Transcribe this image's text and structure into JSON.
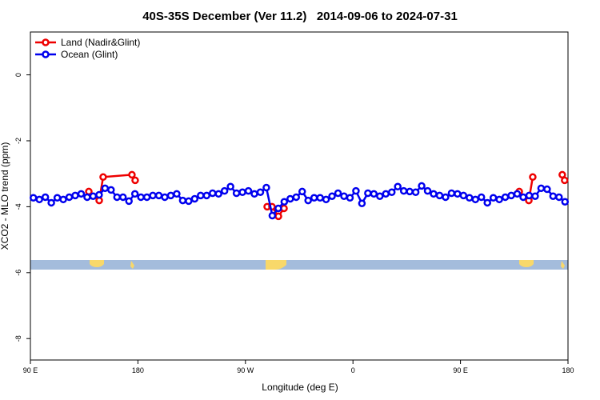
{
  "chart_data": {
    "type": "line",
    "title": "40S-35S December (Ver 11.2)   2014-09-06 to 2024-07-31",
    "xlabel": "Longitude (deg E)",
    "ylabel": "XCO2 - MLO trend (ppm)",
    "xlim": [
      90,
      540
    ],
    "ylim": [
      -8.65,
      1.3
    ],
    "xticks": [
      {
        "value": 90,
        "label": "90 E"
      },
      180,
      {
        "value": 270,
        "label": "90 W"
      },
      {
        "value": 360,
        "label": "0"
      },
      {
        "value": 450,
        "label": "90 E"
      },
      {
        "value": 540,
        "label": "180"
      }
    ],
    "yticks": [
      0,
      -2,
      -4,
      -6,
      -8
    ],
    "legend": "top-left",
    "series": [
      {
        "name": "Land (Nadir&Glint)",
        "color": "#ee0000",
        "x": [
          138.9,
          147.6,
          150.9,
          175.0,
          177.7,
          null,
          288.2,
          292.2,
          297.6,
          302.3,
          null,
          499.2,
          507.2,
          510.5,
          null,
          535.2,
          537.2
        ],
        "values": [
          -3.54,
          -3.81,
          -3.1,
          -3.03,
          -3.2,
          null,
          -4.0,
          -4.0,
          -4.29,
          -4.05,
          null,
          -3.54,
          -3.81,
          -3.1,
          null,
          -3.03,
          -3.2
        ]
      },
      {
        "name": "Ocean (Glint)",
        "color": "#0000ee",
        "x": [
          92.5,
          97.5,
          102.5,
          107.5,
          112.5,
          117.5,
          122.5,
          127.5,
          132.5,
          137.5,
          142.5,
          147.5,
          152.5,
          157.5,
          162.5,
          167.5,
          172.5,
          177.5,
          182.5,
          187.5,
          192.5,
          197.5,
          202.5,
          207.5,
          212.5,
          217.5,
          222.5,
          227.5,
          232.5,
          237.5,
          242.5,
          247.5,
          252.5,
          257.5,
          262.5,
          267.5,
          272.5,
          277.5,
          282.5,
          287.5,
          292.5,
          297.5,
          302.5,
          307.5,
          312.5,
          317.5,
          322.5,
          327.5,
          332.5,
          337.5,
          342.5,
          347.5,
          352.5,
          357.5,
          362.5,
          367.5,
          372.5,
          377.5,
          382.5,
          387.5,
          392.5,
          397.5,
          402.5,
          407.5,
          412.5,
          417.5,
          422.5,
          427.5,
          432.5,
          437.5,
          442.5,
          447.5,
          452.5,
          457.5,
          462.5,
          467.5,
          472.5,
          477.5,
          482.5,
          487.5,
          492.5,
          497.5,
          502.5,
          507.5,
          512.5,
          517.5,
          522.5,
          527.5,
          532.5,
          537.5
        ],
        "values": [
          -3.73,
          -3.78,
          -3.71,
          -3.88,
          -3.73,
          -3.78,
          -3.71,
          -3.66,
          -3.61,
          -3.71,
          -3.68,
          -3.64,
          -3.44,
          -3.49,
          -3.71,
          -3.71,
          -3.83,
          -3.61,
          -3.71,
          -3.71,
          -3.66,
          -3.66,
          -3.71,
          -3.66,
          -3.61,
          -3.81,
          -3.83,
          -3.76,
          -3.66,
          -3.66,
          -3.59,
          -3.61,
          -3.52,
          -3.39,
          -3.59,
          -3.56,
          -3.52,
          -3.61,
          -3.56,
          -3.42,
          -4.27,
          -4.05,
          -3.85,
          -3.76,
          -3.71,
          -3.54,
          -3.81,
          -3.73,
          -3.73,
          -3.78,
          -3.68,
          -3.59,
          -3.68,
          -3.73,
          -3.52,
          -3.9,
          -3.59,
          -3.61,
          -3.68,
          -3.61,
          -3.56,
          -3.39,
          -3.52,
          -3.54,
          -3.56,
          -3.37,
          -3.52,
          -3.61,
          -3.66,
          -3.71,
          -3.59,
          -3.61,
          -3.66,
          -3.73,
          -3.78,
          -3.71,
          -3.88,
          -3.73,
          -3.78,
          -3.71,
          -3.66,
          -3.61,
          -3.71,
          -3.66,
          -3.68,
          -3.44,
          -3.47,
          -3.68,
          -3.71,
          -3.85
        ]
      }
    ]
  }
}
